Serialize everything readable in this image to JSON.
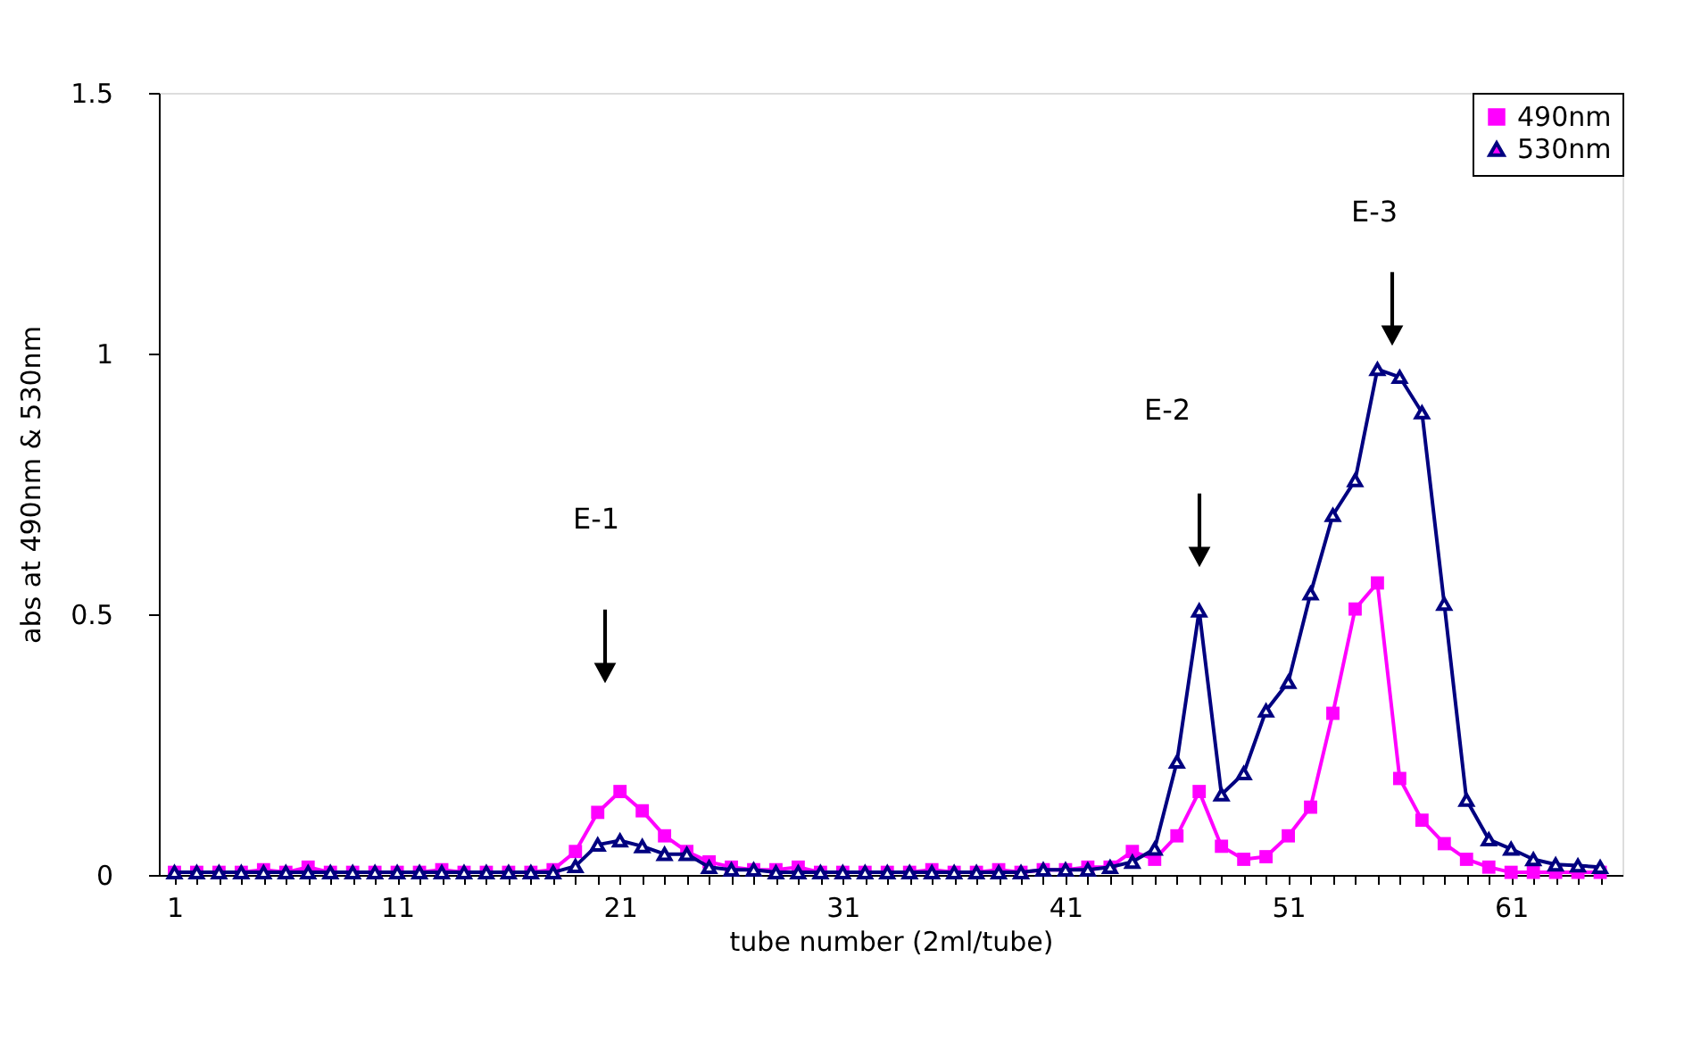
{
  "chart_data": {
    "type": "line",
    "xlabel": "tube number (2ml/tube)",
    "ylabel": "abs at 490nm & 530nm",
    "x": [
      1,
      2,
      3,
      4,
      5,
      6,
      7,
      8,
      9,
      10,
      11,
      12,
      13,
      14,
      15,
      16,
      17,
      18,
      19,
      20,
      21,
      22,
      23,
      24,
      25,
      26,
      27,
      28,
      29,
      30,
      31,
      32,
      33,
      34,
      35,
      36,
      37,
      38,
      39,
      40,
      41,
      42,
      43,
      44,
      45,
      46,
      47,
      48,
      49,
      50,
      51,
      52,
      53,
      54,
      55,
      56,
      57,
      58,
      59,
      60,
      61,
      62,
      63,
      64,
      65
    ],
    "series": [
      {
        "name": "490nm",
        "color": "#ff00ff",
        "marker": "square",
        "values": [
          0.005,
          0.005,
          0.005,
          0.005,
          0.01,
          0.005,
          0.015,
          0.005,
          0.005,
          0.005,
          0.005,
          0.005,
          0.01,
          0.005,
          0.005,
          0.005,
          0.005,
          0.01,
          0.045,
          0.12,
          0.16,
          0.123,
          0.075,
          0.045,
          0.025,
          0.015,
          0.01,
          0.01,
          0.015,
          0.005,
          0.005,
          0.005,
          0.005,
          0.005,
          0.01,
          0.005,
          0.005,
          0.01,
          0.005,
          0.01,
          0.01,
          0.015,
          0.015,
          0.045,
          0.03,
          0.075,
          0.16,
          0.055,
          0.03,
          0.035,
          0.075,
          0.13,
          0.31,
          0.51,
          0.56,
          0.185,
          0.105,
          0.06,
          0.03,
          0.015,
          0.005,
          0.005,
          0.005,
          0.005,
          0.005
        ]
      },
      {
        "name": "530nm",
        "color": "#000080",
        "marker": "triangle",
        "values": [
          0.005,
          0.005,
          0.005,
          0.005,
          0.005,
          0.005,
          0.005,
          0.005,
          0.005,
          0.005,
          0.005,
          0.005,
          0.005,
          0.005,
          0.005,
          0.005,
          0.005,
          0.005,
          0.017,
          0.058,
          0.066,
          0.055,
          0.04,
          0.04,
          0.015,
          0.01,
          0.01,
          0.005,
          0.005,
          0.005,
          0.005,
          0.005,
          0.005,
          0.005,
          0.005,
          0.005,
          0.005,
          0.005,
          0.005,
          0.01,
          0.01,
          0.01,
          0.015,
          0.025,
          0.05,
          0.217,
          0.507,
          0.154,
          0.195,
          0.315,
          0.37,
          0.54,
          0.69,
          0.757,
          0.97,
          0.955,
          0.887,
          0.52,
          0.144,
          0.068,
          0.05,
          0.03,
          0.02,
          0.018,
          0.015
        ]
      }
    ],
    "xlim": [
      0.3,
      66
    ],
    "xticks": [
      1,
      {
        "value": 2,
        "label": null
      },
      {
        "value": 3,
        "label": null
      },
      {
        "value": 4,
        "label": null
      },
      {
        "value": 5,
        "label": null
      },
      {
        "value": 6,
        "label": null
      },
      {
        "value": 7,
        "label": null
      },
      {
        "value": 8,
        "label": null
      },
      {
        "value": 9,
        "label": null
      },
      {
        "value": 10,
        "label": null
      },
      11,
      {
        "value": 12,
        "label": null
      },
      {
        "value": 13,
        "label": null
      },
      {
        "value": 14,
        "label": null
      },
      {
        "value": 15,
        "label": null
      },
      {
        "value": 16,
        "label": null
      },
      {
        "value": 17,
        "label": null
      },
      {
        "value": 18,
        "label": null
      },
      {
        "value": 19,
        "label": null
      },
      {
        "value": 20,
        "label": null
      },
      21,
      {
        "value": 22,
        "label": null
      },
      {
        "value": 23,
        "label": null
      },
      {
        "value": 24,
        "label": null
      },
      {
        "value": 25,
        "label": null
      },
      {
        "value": 26,
        "label": null
      },
      {
        "value": 27,
        "label": null
      },
      {
        "value": 28,
        "label": null
      },
      {
        "value": 29,
        "label": null
      },
      {
        "value": 30,
        "label": null
      },
      31,
      {
        "value": 32,
        "label": null
      },
      {
        "value": 33,
        "label": null
      },
      {
        "value": 34,
        "label": null
      },
      {
        "value": 35,
        "label": null
      },
      {
        "value": 36,
        "label": null
      },
      {
        "value": 37,
        "label": null
      },
      {
        "value": 38,
        "label": null
      },
      {
        "value": 39,
        "label": null
      },
      {
        "value": 40,
        "label": null
      },
      41,
      {
        "value": 42,
        "label": null
      },
      {
        "value": 43,
        "label": null
      },
      {
        "value": 44,
        "label": null
      },
      {
        "value": 45,
        "label": null
      },
      {
        "value": 46,
        "label": null
      },
      {
        "value": 47,
        "label": null
      },
      {
        "value": 48,
        "label": null
      },
      {
        "value": 49,
        "label": null
      },
      {
        "value": 50,
        "label": null
      },
      51,
      {
        "value": 52,
        "label": null
      },
      {
        "value": 53,
        "label": null
      },
      {
        "value": 54,
        "label": null
      },
      {
        "value": 55,
        "label": null
      },
      {
        "value": 56,
        "label": null
      },
      {
        "value": 57,
        "label": null
      },
      {
        "value": 58,
        "label": null
      },
      {
        "value": 59,
        "label": null
      },
      {
        "value": 60,
        "label": null
      },
      61,
      {
        "value": 62,
        "label": null
      },
      {
        "value": 63,
        "label": null
      },
      {
        "value": 64,
        "label": null
      },
      {
        "value": 65,
        "label": null
      }
    ],
    "ylim": [
      0,
      1.5
    ],
    "yticks": [
      0,
      0.5,
      1,
      1.5
    ],
    "grid": false,
    "legend": "top right",
    "annotations": [
      "E-1",
      "E-2",
      "E-3"
    ]
  }
}
